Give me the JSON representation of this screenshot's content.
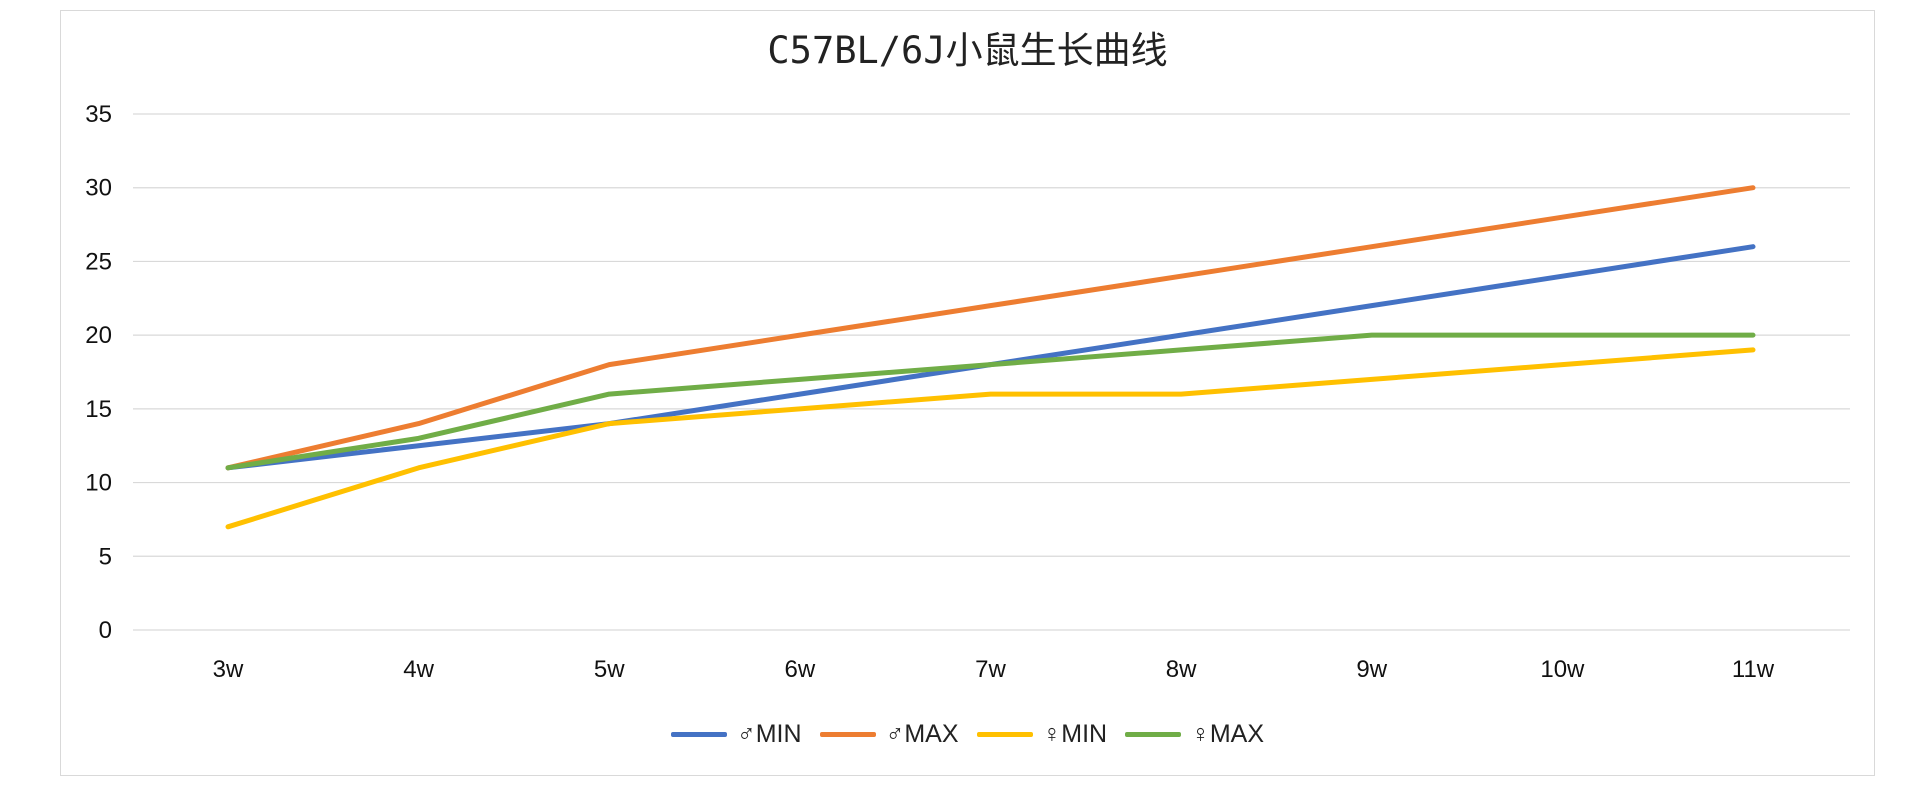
{
  "chart_data": {
    "type": "line",
    "title": "C57BL/6J小鼠生长曲线",
    "categories": [
      "3w",
      "4w",
      "5w",
      "6w",
      "7w",
      "8w",
      "9w",
      "10w",
      "11w"
    ],
    "ylim": [
      0,
      35
    ],
    "yticks": [
      "0",
      "5",
      "10",
      "15",
      "20",
      "25",
      "30",
      "35"
    ],
    "grid": true,
    "legend_position": "bottom",
    "series": [
      {
        "name": "♂MIN",
        "color": "#4472c4",
        "values": [
          11,
          12.5,
          14,
          16,
          18,
          20,
          22,
          24,
          26
        ]
      },
      {
        "name": "♂MAX",
        "color": "#ed7d31",
        "values": [
          11,
          14,
          18,
          20,
          22,
          24,
          26,
          28,
          30
        ]
      },
      {
        "name": "♀MIN",
        "color": "#ffc000",
        "values": [
          7,
          11,
          14,
          15,
          16,
          16,
          17,
          18,
          19
        ]
      },
      {
        "name": "♀MAX",
        "color": "#70ad47",
        "values": [
          11,
          13,
          16,
          17,
          18,
          19,
          20,
          20,
          20
        ]
      }
    ]
  }
}
